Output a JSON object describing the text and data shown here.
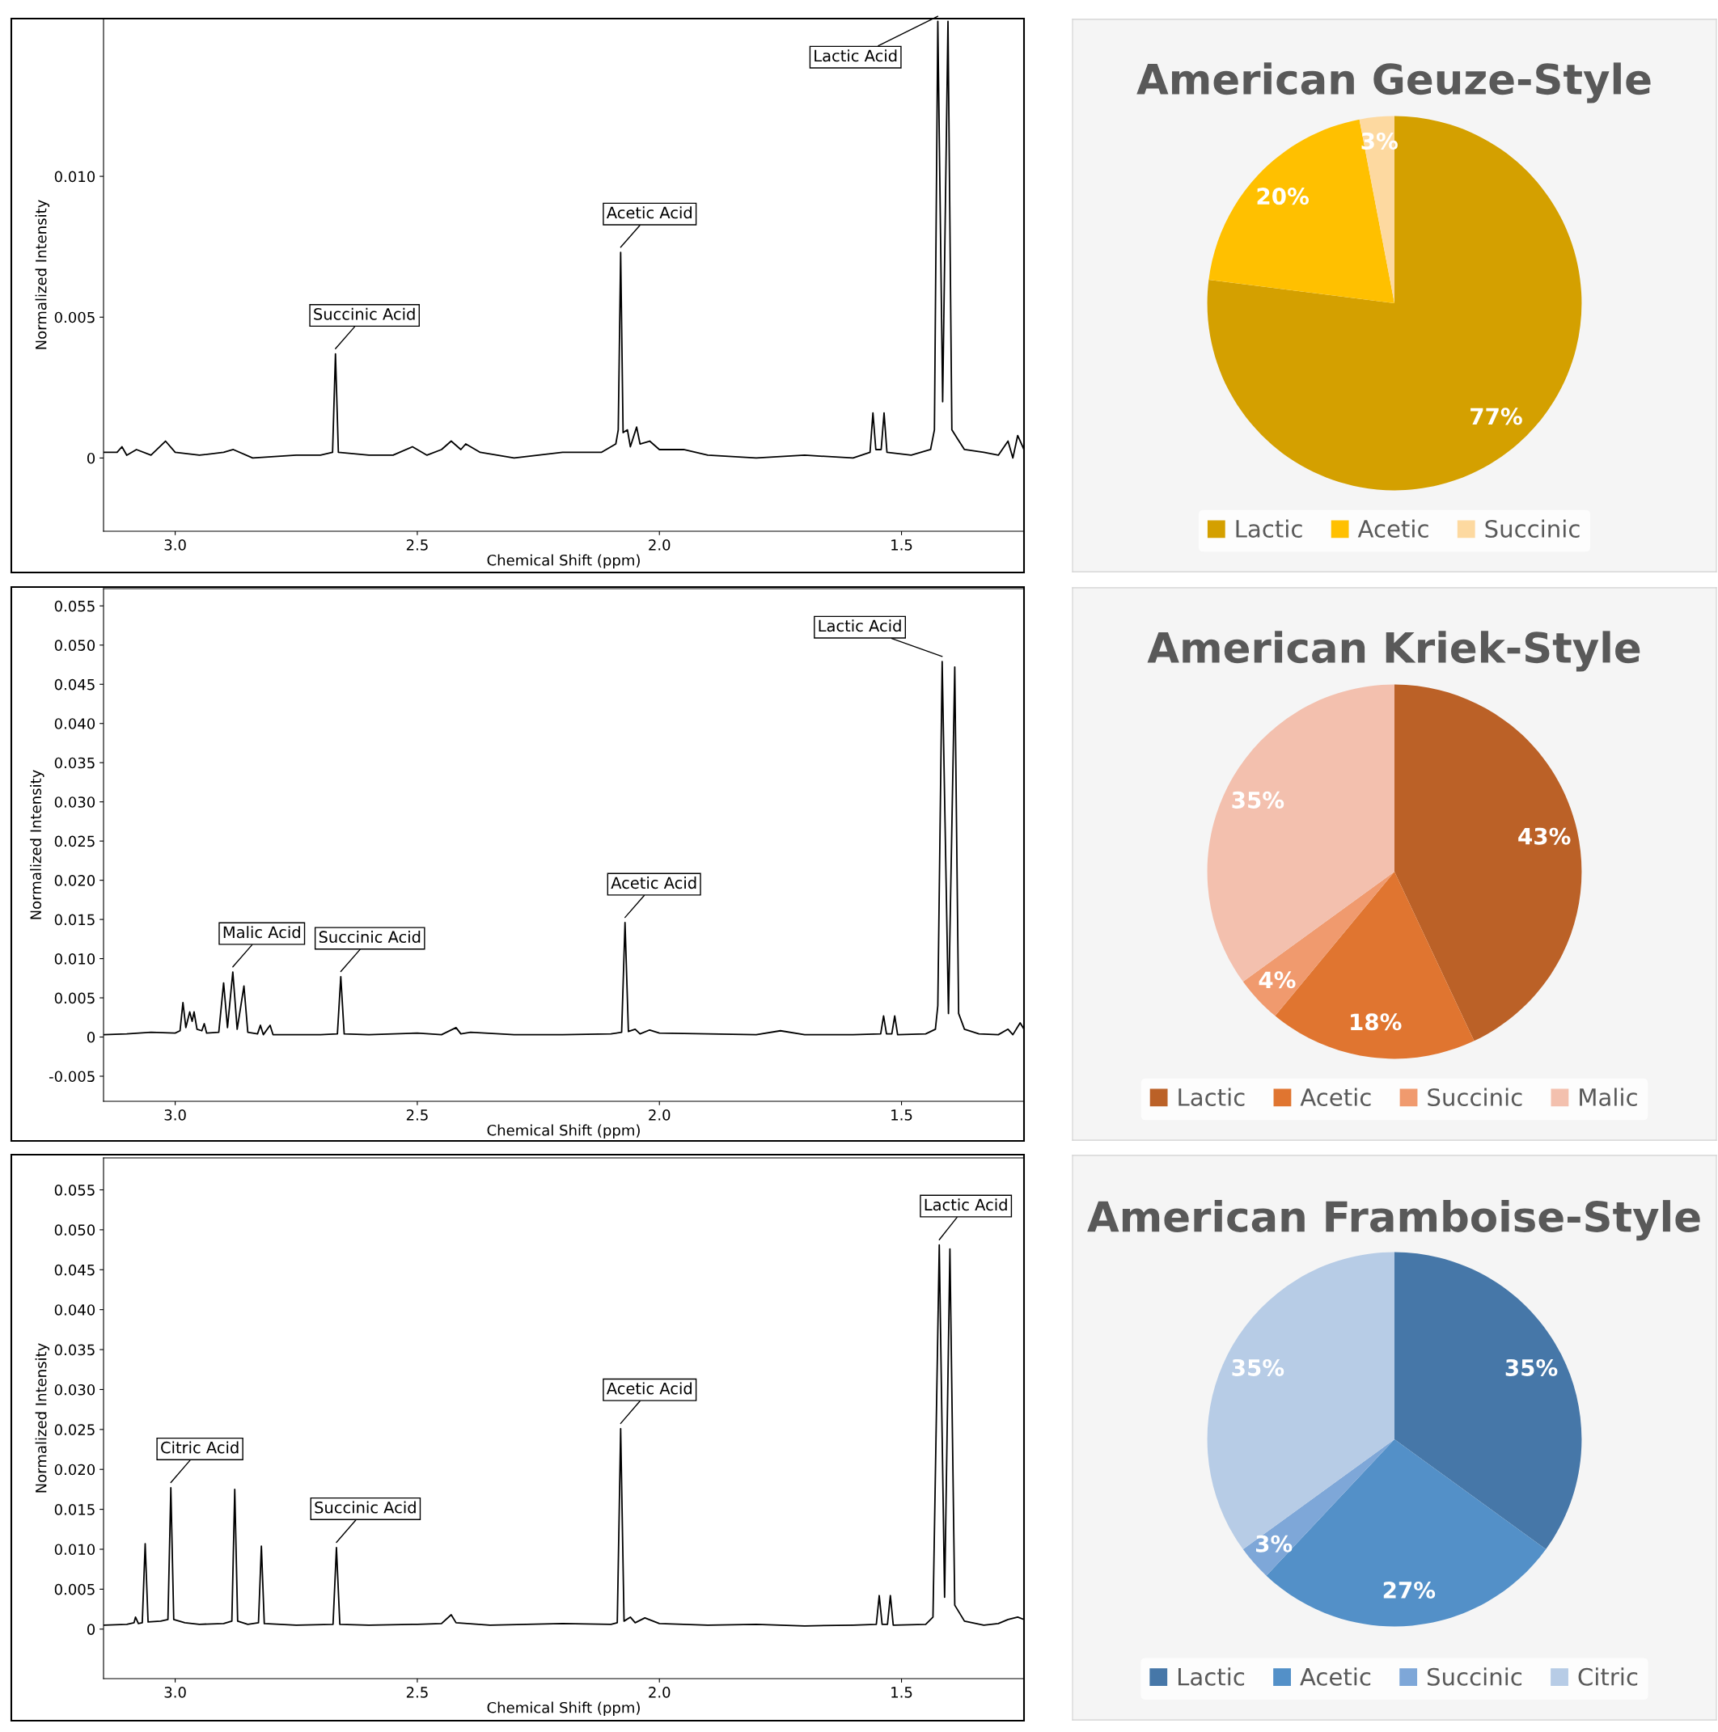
{
  "chart_data": [
    {
      "type": "line",
      "xlabel": "Chemical Shift (ppm)",
      "ylabel": "Normalized Intensity",
      "xlim": [
        3.148,
        1.247
      ],
      "ylim": [
        -0.0026,
        0.0156
      ],
      "xticks": [
        {
          "value": 3.0,
          "label": "3.0"
        },
        {
          "value": 2.5,
          "label": "2.5"
        },
        {
          "value": 2.0,
          "label": "2.0"
        },
        {
          "value": 1.5,
          "label": "1.5"
        }
      ],
      "yticks": [
        {
          "value": 0,
          "label": "0"
        },
        {
          "value": 0.005,
          "label": "0.005"
        },
        {
          "value": 0.01,
          "label": "0.010"
        }
      ],
      "grid": false,
      "legend": false,
      "marker": "none",
      "line_style": "solid",
      "series": [
        {
          "color": "#000000",
          "x": [
            3.148,
            3.12,
            3.11,
            3.1,
            3.08,
            3.05,
            3.02,
            3.0,
            2.95,
            2.9,
            2.88,
            2.84,
            2.75,
            2.7,
            2.675,
            2.669,
            2.663,
            2.6,
            2.55,
            2.51,
            2.48,
            2.45,
            2.43,
            2.41,
            2.4,
            2.37,
            2.3,
            2.2,
            2.12,
            2.09,
            2.085,
            2.08,
            2.075,
            2.066,
            2.06,
            2.047,
            2.04,
            2.02,
            2.0,
            1.95,
            1.9,
            1.8,
            1.7,
            1.6,
            1.565,
            1.559,
            1.553,
            1.542,
            1.536,
            1.53,
            1.48,
            1.44,
            1.432,
            1.425,
            1.415,
            1.404,
            1.396,
            1.385,
            1.37,
            1.33,
            1.3,
            1.28,
            1.27,
            1.26,
            1.247
          ],
          "values": [
            0.0002,
            0.0002,
            0.0004,
            0.0001,
            0.0003,
            0.0001,
            0.0006,
            0.0002,
            0.0001,
            0.0002,
            0.0003,
            0.0,
            0.0001,
            0.0001,
            0.0002,
            0.0037,
            0.0002,
            0.0001,
            0.0001,
            0.0004,
            0.0001,
            0.0003,
            0.0006,
            0.0003,
            0.0005,
            0.0002,
            0.0,
            0.0002,
            0.0002,
            0.0005,
            0.001,
            0.0073,
            0.0009,
            0.001,
            0.0004,
            0.0011,
            0.0005,
            0.0006,
            0.0003,
            0.0003,
            0.0001,
            0.0,
            0.0001,
            0.0,
            0.0002,
            0.0016,
            0.0003,
            0.0003,
            0.0016,
            0.0002,
            0.0001,
            0.0003,
            0.001,
            0.0155,
            0.002,
            0.0155,
            0.001,
            0.0007,
            0.0003,
            0.0002,
            0.0001,
            0.0006,
            0.0,
            0.0008,
            0.0003
          ]
        }
      ],
      "annotations": [
        {
          "text": "Succinic Acid",
          "x": 2.669,
          "y": 0.0037
        },
        {
          "text": "Acetic Acid",
          "x": 2.08,
          "y": 0.0073
        },
        {
          "text": "Lactic Acid",
          "x": 1.425,
          "y": 0.0155
        }
      ]
    },
    {
      "type": "pie",
      "title": "American Geuze-Style",
      "categories": [
        "Lactic",
        "Acetic",
        "Succinic"
      ],
      "values": [
        77,
        20,
        3
      ],
      "colors": [
        "#d4a000",
        "#ffc000",
        "#fdd9a0"
      ],
      "value_labels": [
        "77%",
        "20%",
        "3%"
      ],
      "legend": "bottom"
    },
    {
      "type": "line",
      "xlabel": "Chemical Shift (ppm)",
      "ylabel": "Normalized Intensity",
      "xlim": [
        3.148,
        1.247
      ],
      "ylim": [
        -0.0082,
        0.0572
      ],
      "xticks": [
        {
          "value": 3.0,
          "label": "3.0"
        },
        {
          "value": 2.5,
          "label": "2.5"
        },
        {
          "value": 2.0,
          "label": "2.0"
        },
        {
          "value": 1.5,
          "label": "1.5"
        }
      ],
      "yticks": [
        {
          "value": -0.005,
          "label": "-0.005"
        },
        {
          "value": 0,
          "label": "0"
        },
        {
          "value": 0.005,
          "label": "0.005"
        },
        {
          "value": 0.01,
          "label": "0.010"
        },
        {
          "value": 0.015,
          "label": "0.015"
        },
        {
          "value": 0.02,
          "label": "0.020"
        },
        {
          "value": 0.025,
          "label": "0.025"
        },
        {
          "value": 0.03,
          "label": "0.030"
        },
        {
          "value": 0.035,
          "label": "0.035"
        },
        {
          "value": 0.04,
          "label": "0.040"
        },
        {
          "value": 0.045,
          "label": "0.045"
        },
        {
          "value": 0.05,
          "label": "0.050"
        },
        {
          "value": 0.055,
          "label": "0.055"
        }
      ],
      "grid": false,
      "legend": false,
      "marker": "none",
      "line_style": "solid",
      "series": [
        {
          "color": "#000000",
          "x": [
            3.148,
            3.1,
            3.05,
            3.0,
            2.99,
            2.984,
            2.978,
            2.97,
            2.965,
            2.961,
            2.955,
            2.945,
            2.94,
            2.935,
            2.91,
            2.9,
            2.892,
            2.881,
            2.872,
            2.858,
            2.85,
            2.83,
            2.824,
            2.818,
            2.804,
            2.798,
            2.7,
            2.665,
            2.658,
            2.651,
            2.6,
            2.5,
            2.45,
            2.42,
            2.41,
            2.39,
            2.3,
            2.2,
            2.1,
            2.078,
            2.071,
            2.064,
            2.05,
            2.04,
            2.02,
            2.0,
            1.9,
            1.8,
            1.75,
            1.7,
            1.6,
            1.543,
            1.537,
            1.531,
            1.52,
            1.514,
            1.508,
            1.45,
            1.43,
            1.425,
            1.416,
            1.403,
            1.39,
            1.382,
            1.37,
            1.34,
            1.3,
            1.28,
            1.27,
            1.255,
            1.247
          ],
          "values": [
            0.0003,
            0.0004,
            0.0006,
            0.0005,
            0.0008,
            0.0044,
            0.0012,
            0.0032,
            0.002,
            0.0032,
            0.001,
            0.0008,
            0.0017,
            0.0005,
            0.0006,
            0.0069,
            0.0012,
            0.0083,
            0.001,
            0.0065,
            0.0006,
            0.0004,
            0.0015,
            0.0003,
            0.0015,
            0.0003,
            0.0003,
            0.0004,
            0.0077,
            0.0004,
            0.0003,
            0.0005,
            0.0003,
            0.0012,
            0.0004,
            0.0006,
            0.0003,
            0.0003,
            0.0004,
            0.0006,
            0.0146,
            0.0007,
            0.001,
            0.0004,
            0.0009,
            0.0005,
            0.0004,
            0.0003,
            0.0008,
            0.0003,
            0.0003,
            0.0004,
            0.0027,
            0.0004,
            0.0004,
            0.0027,
            0.0003,
            0.0004,
            0.001,
            0.004,
            0.0479,
            0.003,
            0.0472,
            0.003,
            0.001,
            0.0004,
            0.0003,
            0.001,
            0.0003,
            0.0018,
            0.001
          ]
        }
      ],
      "annotations": [
        {
          "text": "Malic Acid",
          "x": 2.881,
          "y": 0.0083
        },
        {
          "text": "Succinic Acid",
          "x": 2.658,
          "y": 0.0077
        },
        {
          "text": "Acetic Acid",
          "x": 2.071,
          "y": 0.0146
        },
        {
          "text": "Lactic Acid",
          "x": 1.416,
          "y": 0.0479
        }
      ]
    },
    {
      "type": "pie",
      "title": "American Kriek-Style",
      "categories": [
        "Lactic",
        "Acetic",
        "Succinic",
        "Malic"
      ],
      "values": [
        43,
        18,
        4,
        35
      ],
      "colors": [
        "#bb6127",
        "#e07530",
        "#f09a6e",
        "#f3c0ae"
      ],
      "value_labels": [
        "43%",
        "18%",
        "4%",
        "35%"
      ],
      "legend": "bottom"
    },
    {
      "type": "line",
      "xlabel": "Chemical Shift (ppm)",
      "ylabel": "Normalized Intensity",
      "xlim": [
        3.148,
        1.247
      ],
      "ylim": [
        -0.0062,
        0.059
      ],
      "xticks": [
        {
          "value": 3.0,
          "label": "3.0"
        },
        {
          "value": 2.5,
          "label": "2.5"
        },
        {
          "value": 2.0,
          "label": "2.0"
        },
        {
          "value": 1.5,
          "label": "1.5"
        }
      ],
      "yticks": [
        {
          "value": 0,
          "label": "0"
        },
        {
          "value": 0.005,
          "label": "0.005"
        },
        {
          "value": 0.01,
          "label": "0.010"
        },
        {
          "value": 0.015,
          "label": "0.015"
        },
        {
          "value": 0.02,
          "label": "0.020"
        },
        {
          "value": 0.025,
          "label": "0.025"
        },
        {
          "value": 0.03,
          "label": "0.030"
        },
        {
          "value": 0.035,
          "label": "0.035"
        },
        {
          "value": 0.04,
          "label": "0.040"
        },
        {
          "value": 0.045,
          "label": "0.045"
        },
        {
          "value": 0.05,
          "label": "0.050"
        },
        {
          "value": 0.055,
          "label": "0.055"
        }
      ],
      "grid": false,
      "legend": false,
      "marker": "none",
      "line_style": "solid",
      "series": [
        {
          "color": "#000000",
          "x": [
            3.148,
            3.1,
            3.085,
            3.082,
            3.076,
            3.068,
            3.062,
            3.056,
            3.03,
            3.015,
            3.009,
            3.003,
            2.98,
            2.95,
            2.9,
            2.883,
            2.877,
            2.871,
            2.85,
            2.828,
            2.822,
            2.816,
            2.75,
            2.674,
            2.667,
            2.66,
            2.6,
            2.5,
            2.45,
            2.43,
            2.42,
            2.35,
            2.2,
            2.1,
            2.087,
            2.08,
            2.073,
            2.06,
            2.05,
            2.03,
            2.0,
            1.9,
            1.8,
            1.7,
            1.6,
            1.552,
            1.546,
            1.54,
            1.529,
            1.523,
            1.517,
            1.45,
            1.435,
            1.422,
            1.411,
            1.4,
            1.39,
            1.37,
            1.33,
            1.3,
            1.28,
            1.26,
            1.247
          ],
          "values": [
            0.0005,
            0.0006,
            0.0008,
            0.0015,
            0.0007,
            0.0008,
            0.0107,
            0.0009,
            0.001,
            0.0012,
            0.0177,
            0.0012,
            0.0008,
            0.0006,
            0.0007,
            0.001,
            0.0175,
            0.001,
            0.0006,
            0.0008,
            0.0104,
            0.0007,
            0.0005,
            0.0006,
            0.0102,
            0.0006,
            0.0005,
            0.0006,
            0.0007,
            0.0018,
            0.0008,
            0.0005,
            0.0007,
            0.0006,
            0.0008,
            0.0251,
            0.001,
            0.0015,
            0.0008,
            0.0014,
            0.0007,
            0.0005,
            0.0006,
            0.0004,
            0.0005,
            0.0006,
            0.0042,
            0.0006,
            0.0006,
            0.0042,
            0.0005,
            0.0006,
            0.0015,
            0.0481,
            0.004,
            0.0476,
            0.003,
            0.001,
            0.0005,
            0.0007,
            0.0012,
            0.0015,
            0.0012
          ]
        }
      ],
      "annotations": [
        {
          "text": "Citric Acid",
          "x": 3.009,
          "y": 0.0177
        },
        {
          "text": "Succinic Acid",
          "x": 2.667,
          "y": 0.0102
        },
        {
          "text": "Acetic Acid",
          "x": 2.08,
          "y": 0.0251
        },
        {
          "text": "Lactic Acid",
          "x": 1.422,
          "y": 0.0481
        }
      ]
    },
    {
      "type": "pie",
      "title": "American Framboise-Style",
      "categories": [
        "Lactic",
        "Acetic",
        "Succinic",
        "Citric"
      ],
      "values": [
        35,
        27,
        3,
        35
      ],
      "colors": [
        "#4677a8",
        "#5390c8",
        "#7ea7d8",
        "#b7cce6"
      ],
      "value_labels": [
        "35%",
        "27%",
        "3%",
        "35%"
      ],
      "legend": "bottom"
    }
  ]
}
